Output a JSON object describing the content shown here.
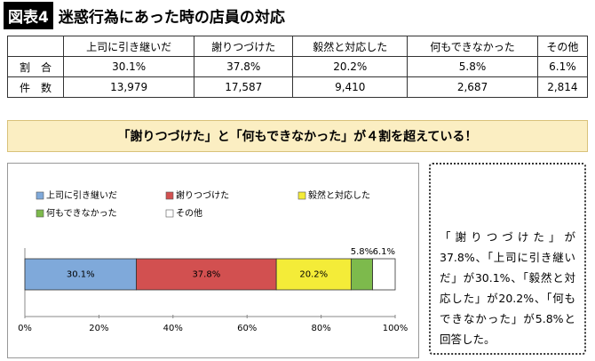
{
  "header": {
    "label": "図表4",
    "title": "迷惑行為にあった時の店員の対応"
  },
  "table": {
    "columns": [
      "上司に引き継いだ",
      "謝りつづけた",
      "毅然と対応した",
      "何もできなかった",
      "その他"
    ],
    "rows": [
      [
        "割　合",
        "30.1%",
        "37.8%",
        "20.2%",
        "5.8%",
        "6.1%"
      ],
      [
        "件　数",
        "13,979",
        "17,587",
        "9,410",
        "2,687",
        "2,814"
      ]
    ]
  },
  "callout": "「謝りつづけた」と「何もできなかった」が４割を超えている！",
  "chart_data": {
    "type": "bar",
    "orientation": "horizontal",
    "stacked": true,
    "series": [
      {
        "name": "上司に引き継いだ",
        "color": "#7fa9da",
        "values": [
          30.1
        ],
        "value_labels": [
          "30.1%"
        ]
      },
      {
        "name": "謝りつづけた",
        "color": "#d25050",
        "values": [
          37.8
        ],
        "value_labels": [
          "37.8%"
        ]
      },
      {
        "name": "毅然と対応した",
        "color": "#f4ec38",
        "values": [
          20.2
        ],
        "value_labels": [
          "20.2%"
        ]
      },
      {
        "name": "何もできなかった",
        "color": "#7dba4c",
        "values": [
          5.8
        ],
        "value_labels": [
          "5.8%"
        ]
      },
      {
        "name": "その他",
        "color": "#ffffff",
        "values": [
          6.1
        ],
        "value_labels": [
          "6.1%"
        ]
      }
    ],
    "xlim": [
      0,
      100
    ],
    "xticks": [
      {
        "value": 0,
        "label": "0%"
      },
      {
        "value": 20,
        "label": "20%"
      },
      {
        "value": 40,
        "label": "40%"
      },
      {
        "value": 60,
        "label": "60%"
      },
      {
        "value": 80,
        "label": "80%"
      },
      {
        "value": 100,
        "label": "100%"
      }
    ]
  },
  "note": "「謝りつづけた」が37.8%、「上司に引き継いだ」が30.1%、「毅然と対応した」が20.2%、「何もできなかった」が5.8%と回答した。"
}
